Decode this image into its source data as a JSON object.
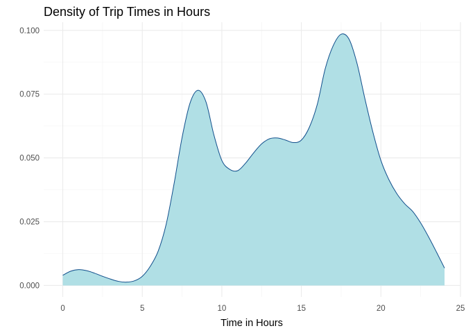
{
  "chart_data": {
    "type": "area",
    "title": "Density of Trip Times in Hours",
    "xlabel": "Time in Hours",
    "ylabel": "",
    "xlim": [
      -1.2,
      25.0
    ],
    "ylim": [
      -0.0045,
      0.1032
    ],
    "x_ticks": [
      0,
      5,
      10,
      15,
      20,
      25
    ],
    "x_tick_labels": [
      "0",
      "5",
      "10",
      "15",
      "20",
      "25"
    ],
    "y_ticks": [
      0.0,
      0.025,
      0.05,
      0.075,
      0.1
    ],
    "y_tick_labels": [
      "0.000",
      "0.025",
      "0.050",
      "0.075",
      "0.100"
    ],
    "grid": true,
    "legend": "none",
    "fill_color": "#b0dfe5",
    "line_color": "#104e8b",
    "series": [
      {
        "x": [
          0,
          0.5,
          1.0,
          1.5,
          2.0,
          2.5,
          3.0,
          3.5,
          4.0,
          4.5,
          5.0,
          5.5,
          6.0,
          6.5,
          7.0,
          7.5,
          8.0,
          8.5,
          9.0,
          9.5,
          10.0,
          10.5,
          11.0,
          11.5,
          12.0,
          12.5,
          13.0,
          13.5,
          14.0,
          14.5,
          15.0,
          15.5,
          16.0,
          16.5,
          17.0,
          17.5,
          18.0,
          18.5,
          19.0,
          19.5,
          20.0,
          20.5,
          21.0,
          21.5,
          22.0,
          22.5,
          23.0,
          23.5,
          24.0
        ],
        "y": [
          0.004,
          0.0056,
          0.0062,
          0.0058,
          0.0048,
          0.0036,
          0.0025,
          0.0016,
          0.0013,
          0.0018,
          0.0036,
          0.0075,
          0.0135,
          0.024,
          0.04,
          0.058,
          0.0715,
          0.0765,
          0.072,
          0.059,
          0.049,
          0.0455,
          0.045,
          0.048,
          0.052,
          0.0555,
          0.0575,
          0.0578,
          0.057,
          0.056,
          0.057,
          0.062,
          0.071,
          0.085,
          0.094,
          0.0985,
          0.0965,
          0.087,
          0.073,
          0.06,
          0.049,
          0.0415,
          0.036,
          0.032,
          0.029,
          0.0245,
          0.019,
          0.013,
          0.0068
        ]
      }
    ]
  }
}
